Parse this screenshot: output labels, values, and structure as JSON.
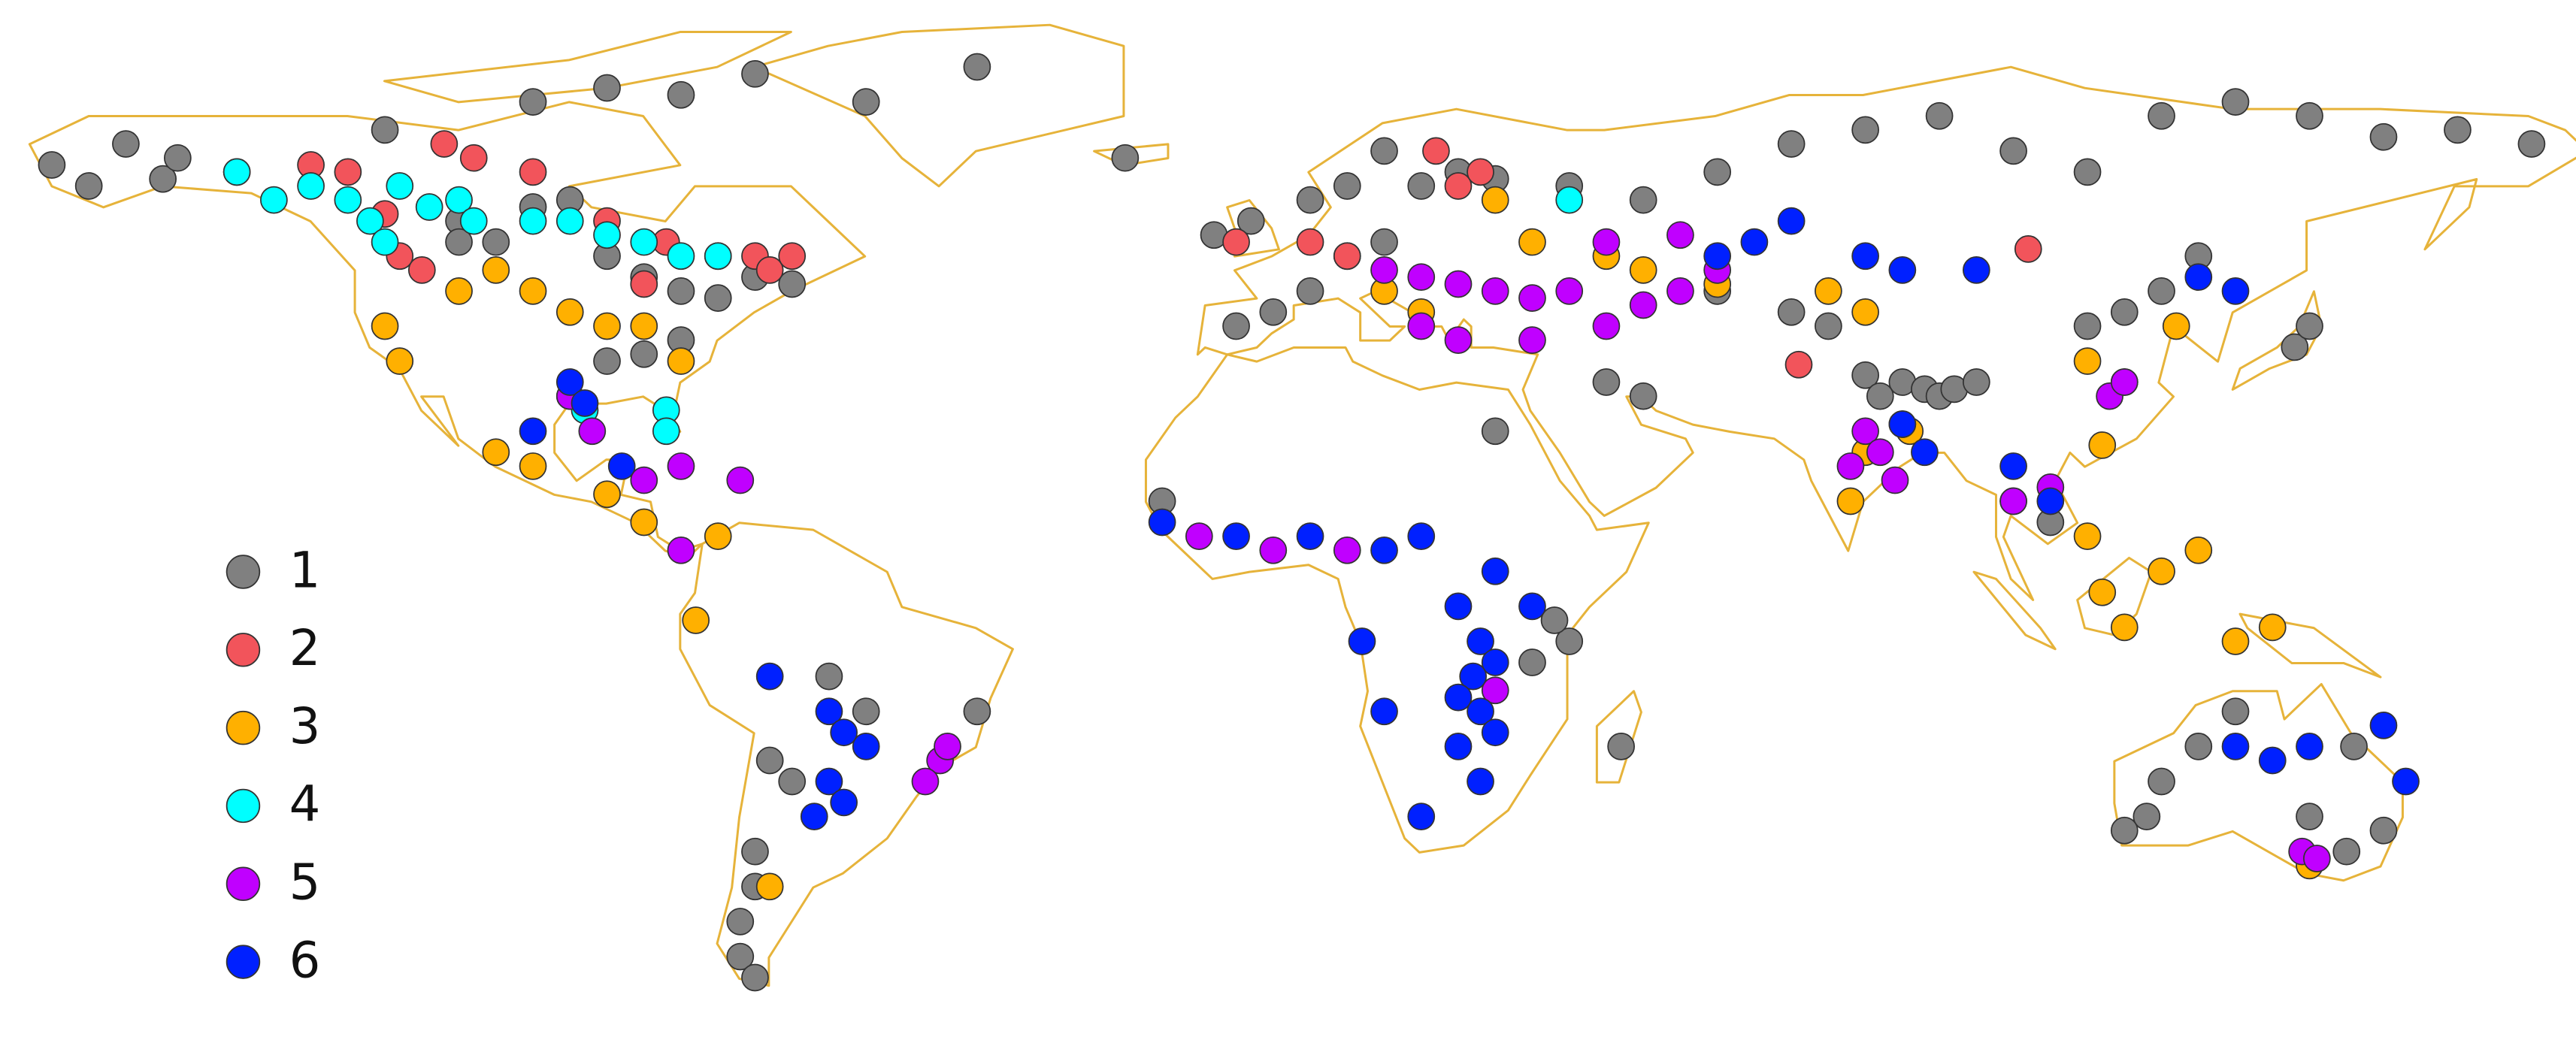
{
  "chart_data": {
    "type": "scatter",
    "xlim": [
      -172,
      176
    ],
    "ylim": [
      -64,
      86.5
    ],
    "series": [
      {
        "name": "1",
        "color": "#808080",
        "x": [
          -165,
          -160,
          -150,
          -148,
          -155,
          -140,
          -120,
          -100,
          -90,
          -80,
          -70,
          -55,
          -40,
          -110,
          -100,
          -95,
          -90,
          -85,
          -80,
          -75,
          -70,
          -65,
          -110,
          -105,
          -80,
          -85,
          -90,
          -20,
          -5,
          0,
          5,
          10,
          15,
          20,
          25,
          30,
          15,
          10,
          5,
          -8,
          -3,
          40,
          50,
          60,
          70,
          80,
          90,
          100,
          110,
          120,
          130,
          140,
          150,
          160,
          170,
          60,
          70,
          75,
          80,
          85,
          88,
          90,
          92,
          95,
          82,
          110,
          115,
          120,
          125,
          138,
          140,
          45,
          50,
          -15,
          30,
          40,
          38,
          35,
          -60,
          -55,
          -65,
          -68,
          -70,
          -70,
          -72,
          -72,
          -70,
          -40,
          120,
          118,
          115,
          125,
          130,
          140,
          145,
          150,
          146,
          47,
          100,
          105
        ],
        "values": [
          63,
          60,
          61,
          64,
          66,
          62,
          68,
          72,
          74,
          73,
          76,
          72,
          77,
          55,
          57,
          58,
          50,
          47,
          45,
          44,
          47,
          46,
          52,
          52,
          38,
          36,
          35,
          64,
          40,
          42,
          45,
          50,
          52,
          60,
          62,
          61,
          65,
          60,
          58,
          53,
          55,
          60,
          58,
          62,
          66,
          68,
          70,
          65,
          62,
          70,
          72,
          70,
          67,
          68,
          66,
          45,
          42,
          40,
          33,
          32,
          31,
          30,
          31,
          32,
          30,
          40,
          42,
          45,
          50,
          37,
          40,
          32,
          30,
          15,
          25,
          -5,
          -2,
          -8,
          -10,
          -15,
          -25,
          -22,
          -35,
          -40,
          -45,
          -50,
          -53,
          -15,
          -25,
          -30,
          -32,
          -20,
          -15,
          -30,
          -35,
          -32,
          -20,
          -20,
          15,
          12
        ]
      },
      {
        "name": "2",
        "color": "#f2545b",
        "x": [
          -130,
          -125,
          -112,
          -108,
          -100,
          -90,
          -82,
          -75,
          -70,
          -68,
          -65,
          -120,
          -118,
          -115,
          -85,
          25,
          28,
          22,
          10,
          5,
          -5,
          102,
          71
        ],
        "values": [
          63,
          62,
          66,
          64,
          62,
          55,
          52,
          50,
          50,
          48,
          50,
          56,
          50,
          48,
          46,
          60,
          62,
          65,
          50,
          52,
          52,
          51,
          34.5
        ]
      },
      {
        "name": "3",
        "color": "#ffb000",
        "x": [
          -110,
          -105,
          -100,
          -95,
          -90,
          -85,
          -80,
          -120,
          -118,
          -105,
          -100,
          -90,
          -85,
          -75,
          -78,
          -68,
          30,
          35,
          45,
          50,
          60,
          75,
          80,
          20,
          15,
          78,
          80,
          86,
          110,
          112,
          115,
          120,
          125,
          130,
          135,
          140,
          110,
          122,
          112
        ],
        "values": [
          45,
          48,
          45,
          42,
          40,
          40,
          35,
          40,
          35,
          22,
          20,
          16,
          12,
          10,
          -2,
          -40,
          58,
          52,
          50,
          48,
          46,
          45,
          42,
          42,
          45,
          15,
          22,
          25,
          10,
          2,
          -3,
          5,
          8,
          -5,
          -3,
          -37,
          35,
          40,
          23
        ]
      },
      {
        "name": "4",
        "color": "#00ffff",
        "x": [
          -140,
          -135,
          -130,
          -125,
          -122,
          -118,
          -114,
          -110,
          -108,
          -100,
          -95,
          -90,
          -85,
          -80,
          -75,
          -120,
          -95,
          -93,
          -82,
          -82,
          40,
          115
        ],
        "values": [
          62,
          58,
          60,
          58,
          55,
          60,
          57,
          58,
          55,
          55,
          55,
          53,
          52,
          50,
          50,
          52,
          30,
          28,
          28,
          25,
          58,
          32
        ]
      },
      {
        "name": "5",
        "color": "#c000ff",
        "x": [
          -95,
          -92,
          -85,
          -80,
          -72,
          -80,
          -45,
          -44,
          -47,
          15,
          20,
          25,
          30,
          35,
          40,
          45,
          50,
          55,
          60,
          35,
          25,
          20,
          45,
          55,
          80,
          82,
          85,
          78,
          84,
          100,
          105,
          -10,
          0,
          10,
          30,
          113,
          115,
          139,
          141
        ],
        "values": [
          30,
          25,
          18,
          20,
          18,
          8,
          -22,
          -20,
          -25,
          48,
          47,
          46,
          45,
          44,
          45,
          40,
          43,
          45,
          48,
          38,
          38,
          40,
          52,
          53,
          25,
          22,
          26,
          20,
          18,
          15,
          17,
          10,
          8,
          8,
          -12,
          30,
          32,
          -35,
          -36
        ]
      },
      {
        "name": "6",
        "color": "#0020ff",
        "x": [
          -95,
          -93,
          -88,
          -100,
          -68,
          -60,
          -58,
          -55,
          -60,
          -58,
          -62,
          -15,
          -5,
          5,
          15,
          20,
          25,
          28,
          30,
          27,
          25,
          28,
          30,
          25,
          28,
          20,
          15,
          12,
          35,
          30,
          60,
          65,
          70,
          80,
          85,
          95,
          125,
          130,
          85,
          88,
          100,
          105,
          130,
          135,
          140,
          150,
          153
        ],
        "values": [
          32,
          29,
          20,
          25,
          -10,
          -15,
          -18,
          -20,
          -25,
          -28,
          -30,
          12,
          10,
          10,
          8,
          10,
          0,
          -5,
          -8,
          -10,
          -13,
          -15,
          -18,
          -20,
          -25,
          -30,
          -15,
          -5,
          0,
          5,
          50,
          52,
          55,
          50,
          48,
          48,
          47,
          45,
          26,
          22,
          20,
          15,
          -20,
          -22,
          -20,
          -17,
          -25
        ]
      }
    ]
  }
}
